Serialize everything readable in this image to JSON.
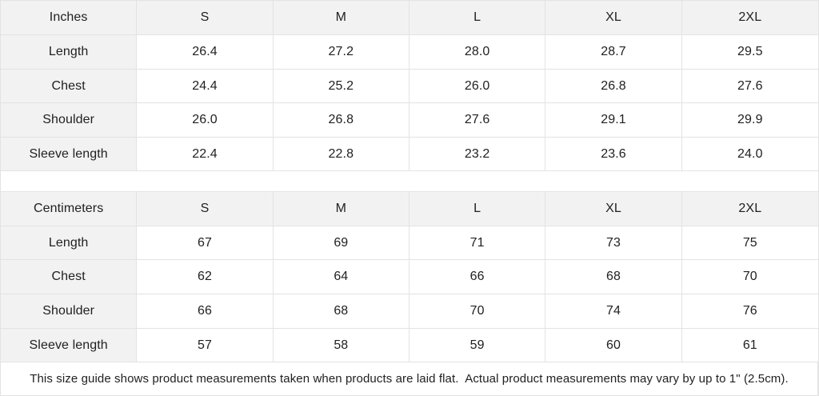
{
  "colors": {
    "header_bg": "#f2f2f2",
    "cell_bg": "#ffffff",
    "border": "#e3e3e3",
    "text": "#212121"
  },
  "inches_table": {
    "unit_label": "Inches",
    "size_headers": [
      "S",
      "M",
      "L",
      "XL",
      "2XL"
    ],
    "rows": [
      {
        "label": "Length",
        "values": [
          "26.4",
          "27.2",
          "28.0",
          "28.7",
          "29.5"
        ]
      },
      {
        "label": "Chest",
        "values": [
          "24.4",
          "25.2",
          "26.0",
          "26.8",
          "27.6"
        ]
      },
      {
        "label": "Shoulder",
        "values": [
          "26.0",
          "26.8",
          "27.6",
          "29.1",
          "29.9"
        ]
      },
      {
        "label": "Sleeve length",
        "values": [
          "22.4",
          "22.8",
          "23.2",
          "23.6",
          "24.0"
        ]
      }
    ]
  },
  "centimeters_table": {
    "unit_label": "Centimeters",
    "size_headers": [
      "S",
      "M",
      "L",
      "XL",
      "2XL"
    ],
    "rows": [
      {
        "label": "Length",
        "values": [
          "67",
          "69",
          "71",
          "73",
          "75"
        ]
      },
      {
        "label": "Chest",
        "values": [
          "62",
          "64",
          "66",
          "68",
          "70"
        ]
      },
      {
        "label": "Shoulder",
        "values": [
          "66",
          "68",
          "70",
          "74",
          "76"
        ]
      },
      {
        "label": "Sleeve length",
        "values": [
          "57",
          "58",
          "59",
          "60",
          "61"
        ]
      }
    ]
  },
  "footer": {
    "note": "This size guide shows product measurements taken when products are laid flat.  Actual product measurements may vary by up to 1\" (2.5cm)."
  }
}
